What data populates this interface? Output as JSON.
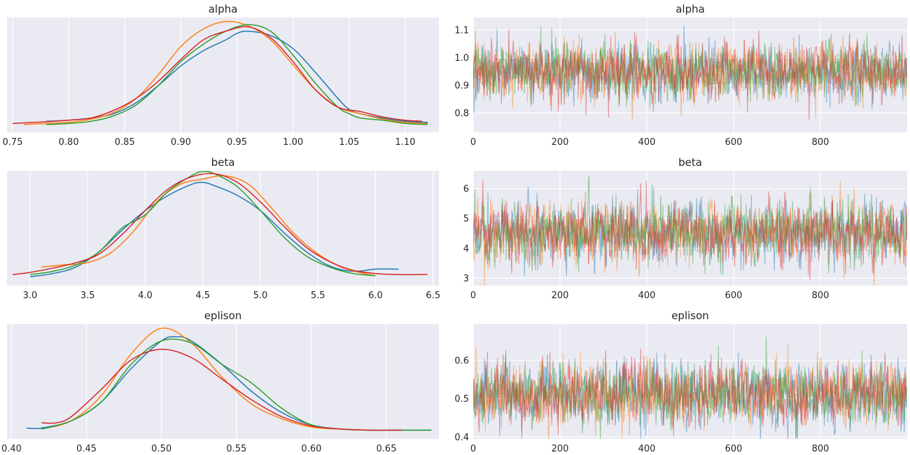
{
  "chart_data": [
    {
      "type": "line",
      "kind": "density",
      "title": "alpha",
      "xlim": [
        0.745,
        1.13
      ],
      "xticks": [
        0.75,
        0.8,
        0.85,
        0.9,
        0.95,
        1.0,
        1.05,
        1.1
      ],
      "xtick_labels": [
        "0.75",
        "0.80",
        "0.85",
        "0.90",
        "0.95",
        "1.00",
        "1.05",
        "1.10"
      ],
      "colors": [
        "#1f77b4",
        "#ff7f0e",
        "#2ca02c",
        "#d62728"
      ],
      "series": [
        {
          "x": [
            0.78,
            0.8,
            0.82,
            0.84,
            0.86,
            0.88,
            0.9,
            0.92,
            0.94,
            0.95,
            0.96,
            0.98,
            1.0,
            1.02,
            1.04,
            1.05,
            1.06,
            1.08,
            1.1,
            1.12
          ],
          "y": [
            0.05,
            0.06,
            0.08,
            0.12,
            0.22,
            0.38,
            0.56,
            0.7,
            0.8,
            0.86,
            0.88,
            0.84,
            0.72,
            0.5,
            0.26,
            0.16,
            0.12,
            0.08,
            0.05,
            0.04
          ]
        },
        {
          "x": [
            0.76,
            0.78,
            0.8,
            0.82,
            0.84,
            0.86,
            0.88,
            0.9,
            0.92,
            0.94,
            0.96,
            0.98,
            1.0,
            1.02,
            1.04,
            1.06,
            1.08,
            1.1,
            1.12
          ],
          "y": [
            0.02,
            0.03,
            0.04,
            0.07,
            0.13,
            0.26,
            0.48,
            0.74,
            0.9,
            0.97,
            0.93,
            0.8,
            0.57,
            0.34,
            0.18,
            0.12,
            0.07,
            0.04,
            0.03
          ]
        },
        {
          "x": [
            0.78,
            0.8,
            0.82,
            0.84,
            0.86,
            0.88,
            0.9,
            0.92,
            0.94,
            0.96,
            0.98,
            1.0,
            1.02,
            1.04,
            1.05,
            1.06,
            1.08,
            1.1,
            1.12
          ],
          "y": [
            0.02,
            0.03,
            0.05,
            0.1,
            0.2,
            0.38,
            0.6,
            0.76,
            0.88,
            0.94,
            0.88,
            0.66,
            0.4,
            0.18,
            0.12,
            0.08,
            0.06,
            0.03,
            0.02
          ]
        },
        {
          "x": [
            0.75,
            0.77,
            0.8,
            0.82,
            0.84,
            0.86,
            0.88,
            0.9,
            0.92,
            0.94,
            0.96,
            0.98,
            1.0,
            1.02,
            1.04,
            1.06,
            1.08,
            1.1,
            1.115
          ],
          "y": [
            0.03,
            0.04,
            0.06,
            0.08,
            0.15,
            0.26,
            0.42,
            0.62,
            0.8,
            0.88,
            0.92,
            0.82,
            0.6,
            0.34,
            0.18,
            0.14,
            0.09,
            0.06,
            0.05
          ]
        }
      ]
    },
    {
      "type": "line",
      "kind": "trace",
      "title": "alpha",
      "xlim": [
        0,
        1000
      ],
      "ylim": [
        0.73,
        1.145
      ],
      "xticks": [
        0,
        200,
        400,
        600,
        800
      ],
      "xtick_labels": [
        "0",
        "200",
        "400",
        "600",
        "800"
      ],
      "yticks": [
        0.8,
        0.9,
        1.0,
        1.1
      ],
      "ytick_labels": [
        "0.8",
        "0.9",
        "1.0",
        "1.1"
      ],
      "colors": [
        "#1f77b4",
        "#ff7f0e",
        "#2ca02c",
        "#d62728"
      ],
      "n_draws": 1000,
      "mean": 0.95,
      "sd": 0.05
    },
    {
      "type": "line",
      "kind": "density",
      "title": "beta",
      "xlim": [
        2.8,
        6.55
      ],
      "xticks": [
        3.0,
        3.5,
        4.0,
        4.5,
        5.0,
        5.5,
        6.0,
        6.5
      ],
      "xtick_labels": [
        "3.0",
        "3.5",
        "4.0",
        "4.5",
        "5.0",
        "5.5",
        "6.0",
        "6.5"
      ],
      "colors": [
        "#1f77b4",
        "#ff7f0e",
        "#2ca02c",
        "#d62728"
      ],
      "series": [
        {
          "x": [
            3.0,
            3.2,
            3.4,
            3.6,
            3.8,
            4.0,
            4.2,
            4.4,
            4.5,
            4.6,
            4.8,
            5.0,
            5.2,
            5.4,
            5.6,
            5.8,
            6.0,
            6.2
          ],
          "y": [
            0.03,
            0.06,
            0.12,
            0.26,
            0.46,
            0.64,
            0.78,
            0.88,
            0.9,
            0.87,
            0.78,
            0.64,
            0.44,
            0.26,
            0.13,
            0.08,
            0.1,
            0.1
          ]
        },
        {
          "x": [
            3.1,
            3.3,
            3.5,
            3.7,
            3.9,
            4.1,
            4.3,
            4.5,
            4.7,
            4.9,
            5.1,
            5.3,
            5.5,
            5.7,
            5.9,
            6.0
          ],
          "y": [
            0.12,
            0.14,
            0.16,
            0.25,
            0.45,
            0.72,
            0.88,
            0.93,
            0.96,
            0.88,
            0.66,
            0.42,
            0.24,
            0.12,
            0.06,
            0.04
          ]
        },
        {
          "x": [
            3.0,
            3.2,
            3.4,
            3.6,
            3.8,
            4.0,
            4.2,
            4.4,
            4.5,
            4.6,
            4.8,
            5.0,
            5.2,
            5.4,
            5.6,
            5.8,
            6.0
          ],
          "y": [
            0.05,
            0.08,
            0.14,
            0.26,
            0.48,
            0.6,
            0.82,
            0.96,
            1.0,
            0.98,
            0.86,
            0.64,
            0.4,
            0.22,
            0.12,
            0.06,
            0.04
          ]
        },
        {
          "x": [
            2.85,
            3.0,
            3.2,
            3.4,
            3.6,
            3.8,
            4.0,
            4.2,
            4.4,
            4.6,
            4.8,
            5.0,
            5.2,
            5.4,
            5.6,
            5.8,
            6.0,
            6.2,
            6.45
          ],
          "y": [
            0.05,
            0.07,
            0.11,
            0.16,
            0.24,
            0.42,
            0.64,
            0.84,
            0.95,
            0.98,
            0.9,
            0.72,
            0.5,
            0.3,
            0.17,
            0.09,
            0.06,
            0.05,
            0.05
          ]
        }
      ]
    },
    {
      "type": "line",
      "kind": "trace",
      "title": "beta",
      "xlim": [
        0,
        1000
      ],
      "ylim": [
        2.75,
        6.6
      ],
      "xticks": [
        0,
        200,
        400,
        600,
        800
      ],
      "xtick_labels": [
        "0",
        "200",
        "400",
        "600",
        "800"
      ],
      "yticks": [
        3,
        4,
        5,
        6
      ],
      "ytick_labels": [
        "3",
        "4",
        "5",
        "6"
      ],
      "colors": [
        "#1f77b4",
        "#ff7f0e",
        "#2ca02c",
        "#d62728"
      ],
      "n_draws": 1000,
      "mean": 4.55,
      "sd": 0.5
    },
    {
      "type": "line",
      "kind": "density",
      "title": "eplison",
      "xlim": [
        0.397,
        0.685
      ],
      "xticks": [
        0.4,
        0.45,
        0.5,
        0.55,
        0.6,
        0.65
      ],
      "xtick_labels": [
        "0.40",
        "0.45",
        "0.50",
        "0.55",
        "0.60",
        "0.65"
      ],
      "colors": [
        "#1f77b4",
        "#ff7f0e",
        "#2ca02c",
        "#d62728"
      ],
      "series": [
        {
          "x": [
            0.41,
            0.42,
            0.44,
            0.46,
            0.48,
            0.5,
            0.51,
            0.52,
            0.54,
            0.56,
            0.58,
            0.6,
            0.62,
            0.64,
            0.66,
            0.68
          ],
          "y": [
            0.05,
            0.05,
            0.12,
            0.3,
            0.62,
            0.88,
            0.92,
            0.88,
            0.66,
            0.4,
            0.2,
            0.08,
            0.04,
            0.03,
            0.03,
            0.03
          ]
        },
        {
          "x": [
            0.42,
            0.44,
            0.46,
            0.48,
            0.5,
            0.52,
            0.54,
            0.56,
            0.58,
            0.6,
            0.62,
            0.64
          ],
          "y": [
            0.04,
            0.12,
            0.36,
            0.76,
            1.0,
            0.86,
            0.54,
            0.28,
            0.14,
            0.06,
            0.04,
            0.03
          ]
        },
        {
          "x": [
            0.42,
            0.44,
            0.46,
            0.48,
            0.5,
            0.52,
            0.54,
            0.56,
            0.58,
            0.6,
            0.62,
            0.64,
            0.66,
            0.68
          ],
          "y": [
            0.04,
            0.12,
            0.3,
            0.66,
            0.88,
            0.86,
            0.66,
            0.48,
            0.24,
            0.08,
            0.04,
            0.03,
            0.03,
            0.03
          ]
        },
        {
          "x": [
            0.42,
            0.43,
            0.44,
            0.46,
            0.48,
            0.5,
            0.52,
            0.54,
            0.56,
            0.58,
            0.6,
            0.62,
            0.64,
            0.66
          ],
          "y": [
            0.1,
            0.1,
            0.16,
            0.42,
            0.7,
            0.8,
            0.72,
            0.52,
            0.32,
            0.16,
            0.07,
            0.04,
            0.03,
            0.03
          ]
        }
      ]
    },
    {
      "type": "line",
      "kind": "trace",
      "title": "eplison",
      "xlim": [
        0,
        1000
      ],
      "ylim": [
        0.395,
        0.695
      ],
      "xticks": [
        0,
        200,
        400,
        600,
        800
      ],
      "xtick_labels": [
        "0",
        "200",
        "400",
        "600",
        "800"
      ],
      "yticks": [
        0.4,
        0.5,
        0.6
      ],
      "ytick_labels": [
        "0.4",
        "0.5",
        "0.6"
      ],
      "colors": [
        "#1f77b4",
        "#ff7f0e",
        "#2ca02c",
        "#d62728"
      ],
      "n_draws": 1000,
      "mean": 0.51,
      "sd": 0.04
    }
  ]
}
